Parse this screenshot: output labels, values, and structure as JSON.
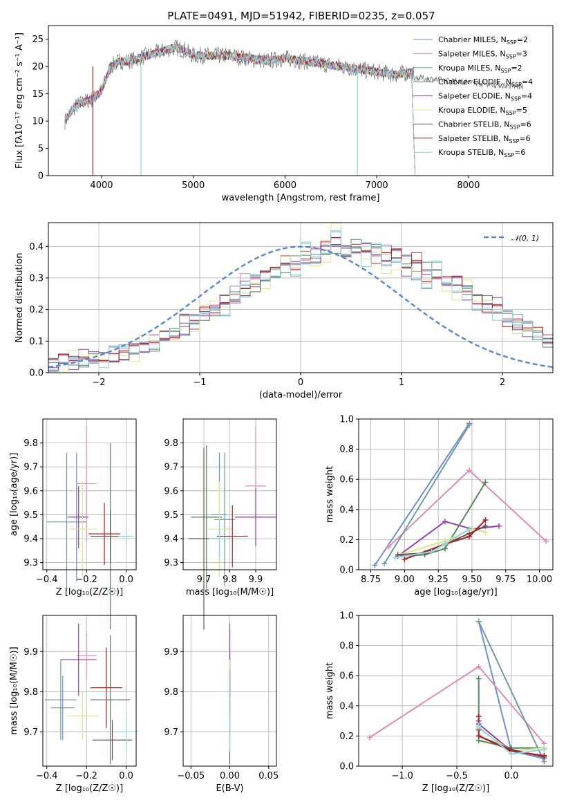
{
  "title": "PLATE=0491, MJD=51942, FIBERID=0235, z=0.057",
  "colors": [
    "#6a8ed9",
    "#e389bf",
    "#6e9aa4",
    "#4f8a5a",
    "#9a3fb0",
    "#dde68a",
    "#6b4f4f",
    "#b51c1c",
    "#8fd6e4"
  ],
  "legend": {
    "p1": [
      {
        "label": "Chabrier MILES, N",
        "sub": "SSP",
        "tail": "=2"
      },
      {
        "label": "Salpeter MILES, N",
        "sub": "SSP",
        "tail": "=3"
      },
      {
        "label": "Kroupa MILES, N",
        "sub": "SSP",
        "tail": "=2"
      },
      {
        "label": "Chabrier ELODIE, N",
        "sub": "SSP",
        "tail": "=4"
      },
      {
        "label": "Salpeter ELODIE, N",
        "sub": "SSP",
        "tail": "=4"
      },
      {
        "label": "Kroupa ELODIE, N",
        "sub": "SSP",
        "tail": "=5"
      },
      {
        "label": "Chabrier STELIB, N",
        "sub": "SSP",
        "tail": "=6"
      },
      {
        "label": "Salpeter STELIB, N",
        "sub": "SSP",
        "tail": "=6"
      },
      {
        "label": "Kroupa STELIB, N",
        "sub": "SSP",
        "tail": "=6"
      }
    ],
    "p2": "𝒩(0, 1)"
  },
  "axes": {
    "p1": {
      "xlabel": "wavelength [Angstrom, rest frame]",
      "ylabel": "Flux [fλ10⁻¹⁷ erg cm⁻² s⁻¹ A⁻¹]",
      "xticks": [
        "4000",
        "5000",
        "6000",
        "7000",
        "8000"
      ],
      "yticks": [
        "0",
        "5",
        "10",
        "15",
        "20",
        "25"
      ]
    },
    "p2": {
      "xlabel": "(data-model)/error",
      "ylabel": "Normed distribution",
      "xticks": [
        "−2",
        "−1",
        "0",
        "1",
        "2"
      ],
      "yticks": [
        "0.0",
        "0.1",
        "0.2",
        "0.3",
        "0.4"
      ]
    },
    "p3": {
      "xlabel": "Z [log₁₀(Z/Z☉)]",
      "ylabel": "age  [log₁₀(age/yr)]",
      "xticks": [
        "−0.4",
        "−0.2",
        "0.0"
      ],
      "yticks": [
        "9.3",
        "9.4",
        "9.5",
        "9.6",
        "9.7",
        "9.8"
      ]
    },
    "p4": {
      "xlabel": "mass [log₁₀(M/M☉)]",
      "ylabel": "",
      "xticks": [
        "9.7",
        "9.8",
        "9.9"
      ],
      "yticks": [
        "9.3",
        "9.4",
        "9.5",
        "9.6",
        "9.7",
        "9.8"
      ]
    },
    "p5": {
      "xlabel": "age  [log₁₀(age/yr)]",
      "ylabel": "mass weight",
      "xticks": [
        "8.75",
        "9.00",
        "9.25",
        "9.50",
        "9.75",
        "10.00"
      ],
      "yticks": [
        "0.0",
        "0.2",
        "0.4",
        "0.6",
        "0.8",
        "1.0"
      ]
    },
    "p6": {
      "xlabel": "Z [log₁₀(Z/Z☉)]",
      "ylabel": "mass [log₁₀(M/M☉)]",
      "xticks": [
        "−0.4",
        "−0.2",
        "0.0"
      ],
      "yticks": [
        "9.7",
        "9.8",
        "9.9"
      ]
    },
    "p7": {
      "xlabel": "E(B-V)",
      "ylabel": "",
      "xticks": [
        "−0.05",
        "0.00",
        "0.05"
      ],
      "yticks": [
        "9.7",
        "9.8",
        "9.9"
      ]
    },
    "p8": {
      "xlabel": "Z [log₁₀(Z/Z☉)]",
      "ylabel": "mass weight",
      "xticks": [
        "−1.0",
        "−0.5",
        "0.0"
      ],
      "yticks": [
        "0.0",
        "0.2",
        "0.4",
        "0.6",
        "0.8",
        "1.0"
      ]
    }
  },
  "chart_data": [
    {
      "type": "line",
      "title": "PLATE=0491, MJD=51942, FIBERID=0235, z=0.057",
      "xlim": [
        3420,
        8920
      ],
      "ylim": [
        0,
        27.5
      ],
      "x": [
        3600,
        3700,
        3800,
        3900,
        4000,
        4100,
        4200,
        4300,
        4400,
        4500,
        4600,
        4700,
        4800,
        4900,
        5000,
        5200,
        5400,
        5600,
        5800,
        6000,
        6200,
        6400,
        6600,
        6800,
        7000,
        7200,
        7400
      ],
      "y": [
        10,
        12.5,
        13.5,
        14,
        15.5,
        20,
        21,
        21,
        21.5,
        22,
        22.5,
        23,
        23.5,
        23,
        22,
        22,
        22,
        21.5,
        21,
        21.5,
        21,
        20.5,
        20,
        19.5,
        19,
        18.5,
        19
      ]
    },
    {
      "type": "bar",
      "xlim": [
        -2.5,
        2.5
      ],
      "ylim": [
        0,
        0.475
      ],
      "gaussian": {
        "mean": 0,
        "sigma": 1,
        "name": "𝒩(0, 1)"
      },
      "bin_width": 0.1,
      "bins_start": -2.5,
      "series": [
        {
          "values": [
            0.028,
            0.035,
            0.036,
            0.038,
            0.043,
            0.046,
            0.053,
            0.064,
            0.072,
            0.08,
            0.092,
            0.11,
            0.128,
            0.142,
            0.16,
            0.178,
            0.2,
            0.22,
            0.24,
            0.26,
            0.28,
            0.3,
            0.32,
            0.34,
            0.35,
            0.36,
            0.37,
            0.38,
            0.39,
            0.395,
            0.398,
            0.395,
            0.39,
            0.38,
            0.37,
            0.36,
            0.345,
            0.33,
            0.315,
            0.3,
            0.28,
            0.26,
            0.24,
            0.22,
            0.2,
            0.18,
            0.16,
            0.14,
            0.12,
            0.105
          ]
        },
        {
          "values": [
            0.02,
            0.042,
            0.03,
            0.05,
            0.045,
            0.055,
            0.06,
            0.05,
            0.075,
            0.09,
            0.1,
            0.12,
            0.13,
            0.16,
            0.15,
            0.2,
            0.19,
            0.23,
            0.24,
            0.29,
            0.28,
            0.31,
            0.33,
            0.35,
            0.34,
            0.38,
            0.37,
            0.4,
            0.42,
            0.37,
            0.39,
            0.4,
            0.37,
            0.36,
            0.38,
            0.33,
            0.36,
            0.3,
            0.32,
            0.28,
            0.29,
            0.25,
            0.22,
            0.2,
            0.23,
            0.17,
            0.15,
            0.13,
            0.14,
            0.1
          ]
        },
        {
          "values": [
            0.03,
            0.025,
            0.045,
            0.035,
            0.05,
            0.04,
            0.065,
            0.07,
            0.06,
            0.1,
            0.09,
            0.13,
            0.11,
            0.17,
            0.15,
            0.19,
            0.21,
            0.2,
            0.25,
            0.26,
            0.3,
            0.29,
            0.31,
            0.36,
            0.33,
            0.39,
            0.35,
            0.37,
            0.45,
            0.38,
            0.4,
            0.36,
            0.39,
            0.33,
            0.35,
            0.34,
            0.31,
            0.29,
            0.33,
            0.27,
            0.25,
            0.27,
            0.21,
            0.22,
            0.19,
            0.18,
            0.14,
            0.16,
            0.12,
            0.11
          ]
        }
      ]
    },
    {
      "type": "scatter",
      "xlim": [
        -0.42,
        0.05
      ],
      "ylim": [
        9.27,
        9.9
      ],
      "points": [
        {
          "x": -0.25,
          "y": 9.49,
          "xerr": 0.05,
          "yerr": 0.27
        },
        {
          "x": -0.2,
          "y": 9.63,
          "xerr": 0.05,
          "yerr": 0.24
        },
        {
          "x": -0.3,
          "y": 9.47,
          "xerr": 0.1,
          "yerr": 0.29
        },
        {
          "x": -0.08,
          "y": 9.41,
          "xerr": 0.09,
          "yerr": 0.39
        },
        {
          "x": -0.24,
          "y": 9.49,
          "xerr": 0.05,
          "yerr": 0.13
        },
        {
          "x": -0.22,
          "y": 9.44,
          "xerr": 0.07,
          "yerr": 0.2
        },
        {
          "x": -0.08,
          "y": 9.41,
          "xerr": 0.1,
          "yerr": 0.11
        },
        {
          "x": -0.11,
          "y": 9.42,
          "xerr": 0.08,
          "yerr": 0.13
        },
        {
          "x": 0.0,
          "y": 9.41,
          "xerr": 0.04,
          "yerr": 0.04
        }
      ]
    },
    {
      "type": "scatter",
      "xlim": [
        9.62,
        9.98
      ],
      "ylim": [
        9.27,
        9.9
      ],
      "points": [
        {
          "x": 9.76,
          "y": 9.5,
          "xerr": 0.03,
          "yerr": 0.26
        },
        {
          "x": 9.9,
          "y": 9.62,
          "xerr": 0.04,
          "yerr": 0.25
        },
        {
          "x": 9.78,
          "y": 9.48,
          "xerr": 0.04,
          "yerr": 0.28
        },
        {
          "x": 9.71,
          "y": 9.49,
          "xerr": 0.06,
          "yerr": 0.3
        },
        {
          "x": 9.9,
          "y": 9.49,
          "xerr": 0.08,
          "yerr": 0.12
        },
        {
          "x": 9.76,
          "y": 9.44,
          "xerr": 0.05,
          "yerr": 0.2
        },
        {
          "x": 9.7,
          "y": 9.4,
          "xerr": 0.06,
          "yerr": 0.38
        },
        {
          "x": 9.81,
          "y": 9.41,
          "xerr": 0.06,
          "yerr": 0.13
        },
        {
          "x": 9.76,
          "y": 9.4,
          "xerr": 0.04,
          "yerr": 0.08
        }
      ]
    },
    {
      "type": "line",
      "xlim": [
        8.66,
        10.1
      ],
      "ylim": [
        0,
        1.0
      ],
      "series": [
        {
          "x": [
            8.78,
            9.48
          ],
          "y": [
            0.03,
            0.97
          ]
        },
        {
          "x": [
            8.88,
            9.48,
            10.05
          ],
          "y": [
            0.15,
            0.66,
            0.19
          ]
        },
        {
          "x": [
            8.85,
            9.48
          ],
          "y": [
            0.04,
            0.96
          ]
        },
        {
          "x": [
            8.95,
            9.15,
            9.3,
            9.6
          ],
          "y": [
            0.09,
            0.1,
            0.14,
            0.58
          ]
        },
        {
          "x": [
            8.95,
            9.3,
            9.5,
            9.7
          ],
          "y": [
            0.09,
            0.32,
            0.27,
            0.29
          ]
        },
        {
          "x": [
            8.96,
            9.3,
            9.5,
            9.6
          ],
          "y": [
            0.1,
            0.19,
            0.27,
            0.25
          ]
        },
        {
          "x": [
            8.95,
            9.15,
            9.3,
            9.48,
            9.6
          ],
          "y": [
            0.1,
            0.11,
            0.17,
            0.24,
            0.29
          ]
        },
        {
          "x": [
            9.0,
            9.3,
            9.48,
            9.6
          ],
          "y": [
            0.07,
            0.17,
            0.22,
            0.33
          ]
        },
        {
          "x": [
            8.93,
            9.2,
            9.3,
            9.48
          ],
          "y": [
            0.08,
            0.12,
            0.17,
            0.27
          ]
        }
      ]
    },
    {
      "type": "scatter",
      "xlim": [
        -0.42,
        0.05
      ],
      "ylim": [
        9.615,
        9.99
      ],
      "points": [
        {
          "x": -0.32,
          "y": 9.76,
          "xerr": 0.06,
          "yerr": 0.08
        },
        {
          "x": -0.2,
          "y": 9.89,
          "xerr": 0.05,
          "yerr": 0.06
        },
        {
          "x": -0.33,
          "y": 9.78,
          "xerr": 0.08,
          "yerr": 0.1
        },
        {
          "x": -0.08,
          "y": 9.78,
          "xerr": 0.1,
          "yerr": 0.16
        },
        {
          "x": -0.24,
          "y": 9.88,
          "xerr": 0.09,
          "yerr": 0.09
        },
        {
          "x": -0.22,
          "y": 9.74,
          "xerr": 0.08,
          "yerr": 0.06
        },
        {
          "x": -0.07,
          "y": 9.68,
          "xerr": 0.1,
          "yerr": 0.05
        },
        {
          "x": -0.1,
          "y": 9.81,
          "xerr": 0.08,
          "yerr": 0.1
        },
        {
          "x": 0.0,
          "y": 9.7,
          "xerr": 0.06,
          "yerr": 0.05
        }
      ]
    },
    {
      "type": "scatter",
      "xlim": [
        -0.06,
        0.06
      ],
      "ylim": [
        9.615,
        9.99
      ],
      "points": [
        {
          "x": 0,
          "y": 9.85,
          "yerr": 0.1
        },
        {
          "x": 0,
          "y": 9.86,
          "yerr": 0.05
        },
        {
          "x": 0,
          "y": 9.79,
          "yerr": 0.1
        },
        {
          "x": 0,
          "y": 9.8,
          "yerr": 0.06
        },
        {
          "x": 0,
          "y": 9.88,
          "yerr": 0.09
        },
        {
          "x": 0,
          "y": 9.79,
          "yerr": 0.09
        },
        {
          "x": 0,
          "y": 9.72,
          "yerr": 0.1
        },
        {
          "x": 0,
          "y": 9.82,
          "yerr": 0.03
        },
        {
          "x": 0,
          "y": 9.75,
          "yerr": 0.1
        }
      ]
    },
    {
      "type": "line",
      "xlim": [
        -1.4,
        0.38
      ],
      "ylim": [
        0,
        1.0
      ],
      "series": [
        {
          "x": [
            -0.3,
            0.0,
            0.3
          ],
          "y": [
            0.96,
            0.1,
            0.05
          ]
        },
        {
          "x": [
            -1.3,
            -0.3,
            0.3
          ],
          "y": [
            0.19,
            0.66,
            0.15
          ]
        },
        {
          "x": [
            -0.3,
            0.3
          ],
          "y": [
            0.96,
            0.03
          ]
        },
        {
          "x": [
            -0.3,
            -0.3,
            0.0,
            0.3
          ],
          "y": [
            0.58,
            0.17,
            0.12,
            0.12
          ]
        },
        {
          "x": [
            -0.3,
            -0.3,
            0.0,
            0.3
          ],
          "y": [
            0.3,
            0.28,
            0.1,
            0.12
          ]
        },
        {
          "x": [
            -0.3,
            -0.3,
            0.0,
            0.3
          ],
          "y": [
            0.2,
            0.25,
            0.1,
            0.12
          ]
        },
        {
          "x": [
            -0.3,
            -0.3,
            0.0,
            0.3
          ],
          "y": [
            0.24,
            0.2,
            0.11,
            0.06
          ]
        },
        {
          "x": [
            -0.3,
            -0.3,
            0.0,
            0.3
          ],
          "y": [
            0.33,
            0.2,
            0.1,
            0.07
          ]
        },
        {
          "x": [
            -0.3,
            -0.3,
            0.0,
            0.3
          ],
          "y": [
            0.27,
            0.26,
            0.08,
            0.11
          ]
        }
      ]
    }
  ]
}
